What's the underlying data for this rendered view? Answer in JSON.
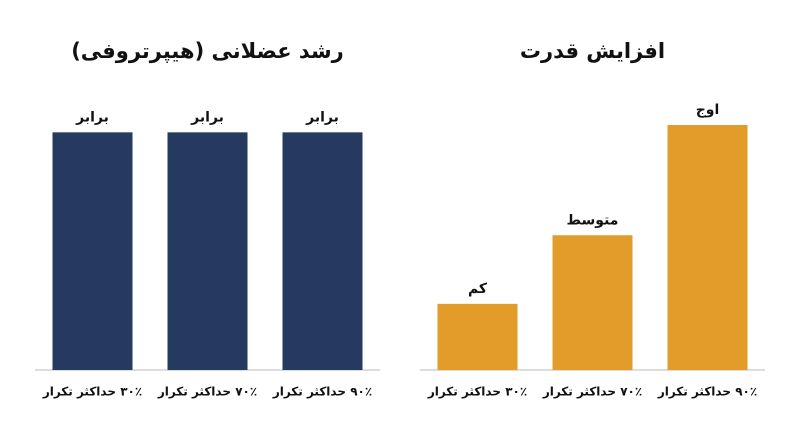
{
  "chart_data": [
    {
      "type": "bar",
      "title": "رشد عضلانی (هیپرتروفی)",
      "categories": [
        "۳۰٪ حداکثر تکرار",
        "۷۰٪ حداکثر تکرار",
        "۹۰٪ حداکثر تکرار"
      ],
      "values": [
        97,
        97,
        97
      ],
      "value_labels": [
        "برابر",
        "برابر",
        "برابر"
      ],
      "color": "#253a5e",
      "ylim": [
        0,
        100
      ]
    },
    {
      "type": "bar",
      "title": "افزایش قدرت",
      "categories": [
        "۳۰٪ حداکثر تکرار",
        "۷۰٪ حداکثر تکرار",
        "۹۰٪ حداکثر تکرار"
      ],
      "values": [
        27,
        55,
        100
      ],
      "value_labels": [
        "کم",
        "متوسط",
        "اوج"
      ],
      "color": "#e39b2a",
      "ylim": [
        0,
        100
      ]
    }
  ]
}
